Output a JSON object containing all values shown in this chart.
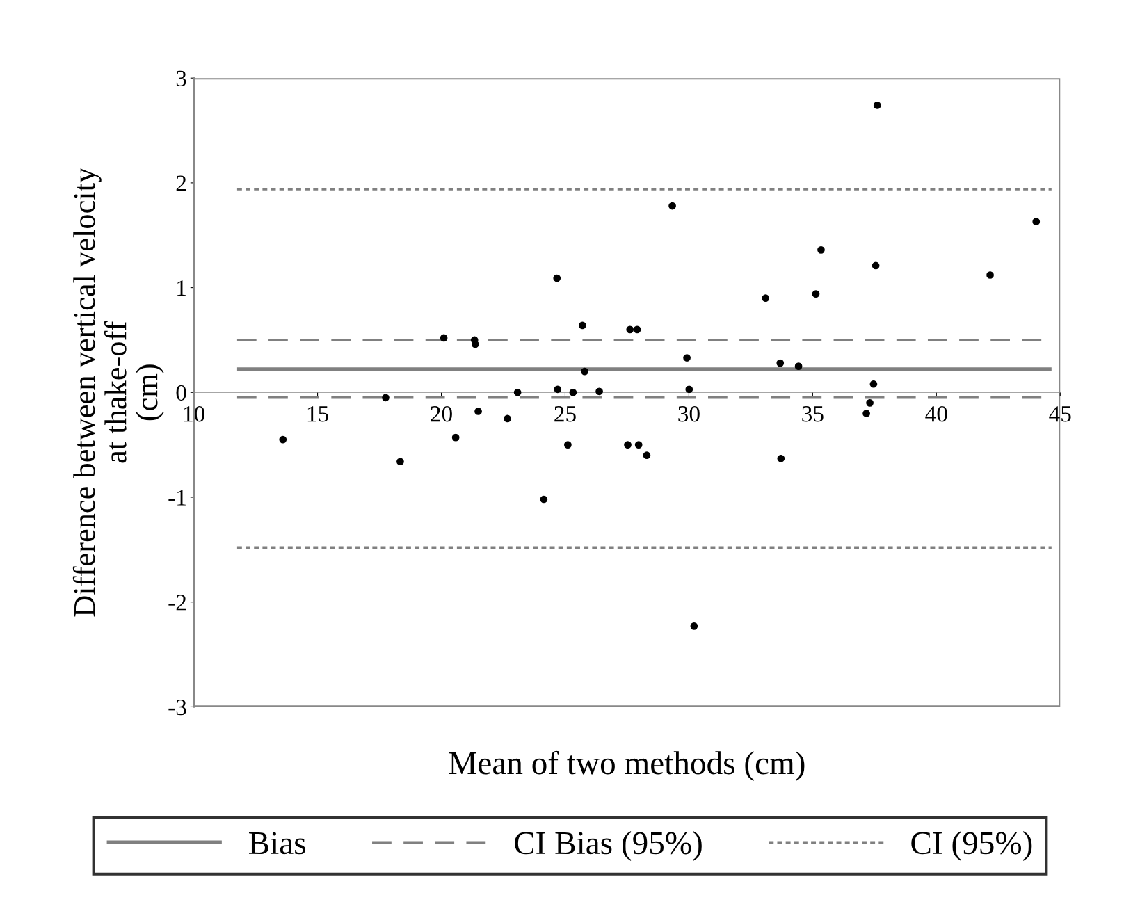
{
  "chart_data": {
    "type": "scatter",
    "xlabel": "Mean of two methods (cm)",
    "ylabel": "Difference between vertical velocity\nat thake-off\n(cm)",
    "xlim": [
      10,
      45
    ],
    "xticks": [
      10,
      15,
      20,
      25,
      30,
      35,
      40,
      45
    ],
    "ylim": [
      -3,
      3
    ],
    "yticks": [
      -3,
      -2,
      -1,
      0,
      1,
      2,
      3
    ],
    "grid": false,
    "legend": "bottom",
    "marker": "circle",
    "series": [
      {
        "color": "#000000",
        "x": [
          13.6,
          17.75,
          18.34,
          20.1,
          20.58,
          21.34,
          21.37,
          21.49,
          22.67,
          23.08,
          24.14,
          24.67,
          24.7,
          25.11,
          25.32,
          25.7,
          25.79,
          26.38,
          27.53,
          27.62,
          27.91,
          27.97,
          28.3,
          29.33,
          29.92,
          30.01,
          30.21,
          33.1,
          33.69,
          33.72,
          34.43,
          35.13,
          35.34,
          37.17,
          37.31,
          37.46,
          37.55,
          37.61,
          42.17,
          44.03
        ],
        "values": [
          -0.45,
          -0.05,
          -0.66,
          0.52,
          -0.43,
          0.5,
          0.46,
          -0.18,
          -0.25,
          0.0,
          -1.02,
          1.09,
          0.03,
          -0.5,
          0.0,
          0.64,
          0.2,
          0.01,
          -0.5,
          0.6,
          0.6,
          -0.5,
          -0.6,
          1.78,
          0.33,
          0.03,
          -2.23,
          0.9,
          0.28,
          -0.63,
          0.25,
          0.94,
          1.36,
          -0.2,
          -0.1,
          0.08,
          1.21,
          2.74,
          1.12,
          1.63
        ]
      }
    ],
    "ref_lines": [
      {
        "axis": "y",
        "value": 0.22,
        "label": "Bias",
        "color": "#808080",
        "line_style": "solid"
      },
      {
        "axis": "y",
        "value": 0.5,
        "label": "CI Bias (95%)",
        "color": "#808080",
        "line_style": "dashed"
      },
      {
        "axis": "y",
        "value": -0.05,
        "color": "#808080",
        "line_style": "dashed"
      },
      {
        "axis": "y",
        "value": 1.94,
        "label": "CI (95%)",
        "color": "#808080",
        "line_style": "dotted"
      },
      {
        "axis": "y",
        "value": -1.48,
        "color": "#808080",
        "line_style": "dotted"
      }
    ]
  }
}
